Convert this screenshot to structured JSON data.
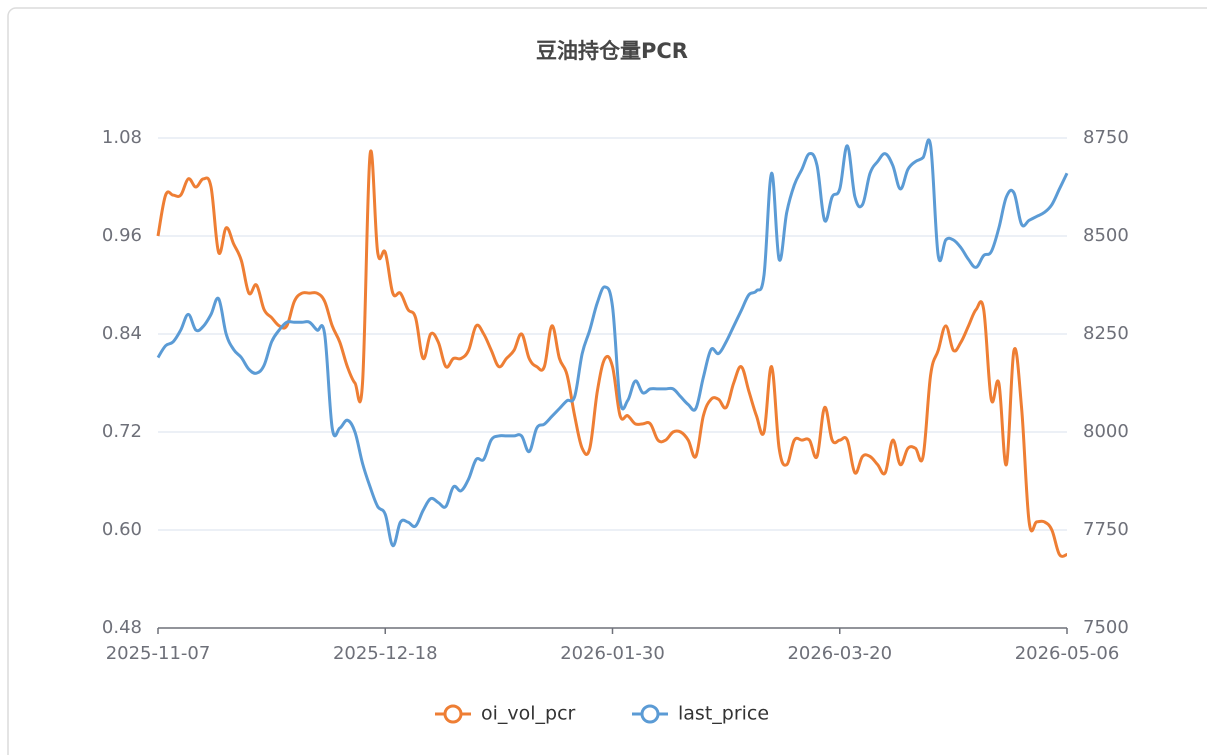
{
  "chart_data": {
    "type": "line",
    "title": "豆油持仓量PCR",
    "categories": [
      "2025-11-07",
      null,
      null,
      null,
      null,
      null,
      null,
      null,
      null,
      null,
      null,
      null,
      null,
      null,
      null,
      null,
      null,
      null,
      null,
      null,
      null,
      null,
      null,
      null,
      null,
      null,
      null,
      null,
      null,
      null,
      "2025-12-18",
      null,
      null,
      null,
      null,
      null,
      null,
      null,
      null,
      null,
      null,
      null,
      null,
      null,
      null,
      null,
      null,
      null,
      null,
      null,
      null,
      null,
      null,
      null,
      null,
      null,
      null,
      null,
      null,
      null,
      "2026-01-30",
      null,
      null,
      null,
      null,
      null,
      null,
      null,
      null,
      null,
      null,
      null,
      null,
      null,
      null,
      null,
      null,
      null,
      null,
      null,
      null,
      null,
      null,
      null,
      null,
      null,
      null,
      null,
      null,
      null,
      "2026-03-20",
      null,
      null,
      null,
      null,
      null,
      null,
      null,
      null,
      null,
      null,
      null,
      null,
      null,
      null,
      null,
      null,
      null,
      null,
      null,
      null,
      null,
      null,
      null,
      null,
      null,
      null,
      null,
      null,
      null,
      "2026-05-06"
    ],
    "series": [
      {
        "name": "oi_vol_pcr",
        "color": "#ee7e34",
        "values": [
          0.96,
          1.01,
          1.01,
          1.01,
          1.03,
          1.02,
          1.03,
          1.02,
          0.94,
          0.97,
          0.95,
          0.93,
          0.89,
          0.9,
          0.87,
          0.86,
          0.85,
          0.85,
          0.88,
          0.89,
          0.89,
          0.89,
          0.88,
          0.85,
          0.83,
          0.8,
          0.78,
          0.78,
          1.06,
          0.94,
          0.94,
          0.89,
          0.89,
          0.87,
          0.86,
          0.81,
          0.84,
          0.83,
          0.8,
          0.81,
          0.81,
          0.82,
          0.85,
          0.84,
          0.82,
          0.8,
          0.81,
          0.82,
          0.84,
          0.81,
          0.8,
          0.8,
          0.85,
          0.81,
          0.79,
          0.74,
          0.7,
          0.7,
          0.77,
          0.81,
          0.8,
          0.74,
          0.74,
          0.73,
          0.73,
          0.73,
          0.71,
          0.71,
          0.72,
          0.72,
          0.71,
          0.69,
          0.74,
          0.76,
          0.76,
          0.75,
          0.78,
          0.8,
          0.77,
          0.74,
          0.72,
          0.8,
          0.7,
          0.68,
          0.71,
          0.71,
          0.71,
          0.69,
          0.75,
          0.71,
          0.71,
          0.71,
          0.67,
          0.69,
          0.69,
          0.68,
          0.67,
          0.71,
          0.68,
          0.7,
          0.7,
          0.69,
          0.79,
          0.82,
          0.85,
          0.82,
          0.83,
          0.85,
          0.87,
          0.87,
          0.76,
          0.78,
          0.68,
          0.82,
          0.75,
          0.61,
          0.61,
          0.61,
          0.6,
          0.57,
          0.57
        ]
      },
      {
        "name": "last_price",
        "color": "#5b9bd5",
        "axis": "y2",
        "values": [
          8190,
          8220,
          8230,
          8260,
          8300,
          8260,
          8270,
          8300,
          8340,
          8250,
          8210,
          8190,
          8160,
          8150,
          8170,
          8230,
          8260,
          8280,
          8280,
          8280,
          8280,
          8260,
          8250,
          8010,
          8010,
          8030,
          8000,
          7920,
          7860,
          7810,
          7790,
          7710,
          7770,
          7770,
          7760,
          7800,
          7830,
          7820,
          7810,
          7860,
          7850,
          7880,
          7930,
          7930,
          7980,
          7990,
          7990,
          7990,
          7990,
          7950,
          8010,
          8020,
          8040,
          8060,
          8080,
          8090,
          8200,
          8260,
          8330,
          8370,
          8320,
          8080,
          8080,
          8130,
          8100,
          8110,
          8110,
          8110,
          8110,
          8090,
          8070,
          8060,
          8140,
          8210,
          8200,
          8230,
          8270,
          8310,
          8350,
          8360,
          8400,
          8660,
          8440,
          8560,
          8630,
          8670,
          8710,
          8680,
          8540,
          8600,
          8620,
          8730,
          8600,
          8580,
          8660,
          8690,
          8710,
          8680,
          8620,
          8670,
          8690,
          8700,
          8730,
          8450,
          8490,
          8490,
          8470,
          8440,
          8420,
          8450,
          8460,
          8520,
          8600,
          8610,
          8530,
          8540,
          8550,
          8560,
          8580,
          8620,
          8660
        ]
      }
    ],
    "ylim": [
      0.48,
      1.08
    ],
    "yticks": [
      0.48,
      {
        "value": 0.6,
        "label": "0.60"
      },
      0.72,
      0.84,
      0.96,
      1.08
    ],
    "y2lim": [
      7500,
      8750
    ],
    "y2ticks": [
      7500,
      7750,
      8000,
      8250,
      8500,
      8750
    ],
    "grid": true,
    "legend": "bottom"
  }
}
